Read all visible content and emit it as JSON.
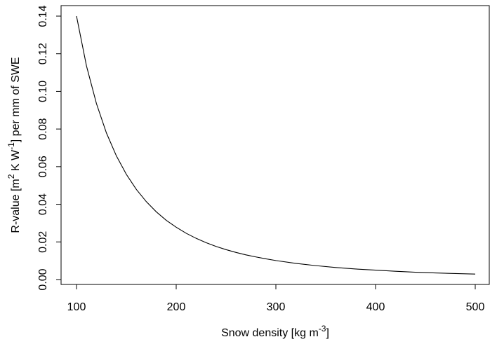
{
  "chart_data": {
    "type": "line",
    "title": "",
    "xlabel": {
      "main": "Snow density [kg m",
      "sup": "-3",
      "tail": "]"
    },
    "ylabel": {
      "p1": "R-value [m",
      "s1": "2",
      "p2": " K W",
      "s2": "-1",
      "p3": "] per mm of SWE"
    },
    "xlim": [
      100,
      500
    ],
    "ylim": [
      0,
      0.14
    ],
    "xticks": [
      100,
      200,
      300,
      400,
      500
    ],
    "xtick_labels": [
      "100",
      "200",
      "300",
      "400",
      "500"
    ],
    "yticks": [
      0.0,
      0.02,
      0.04,
      0.06,
      0.08,
      0.1,
      0.12,
      0.14
    ],
    "ytick_labels": [
      "0.00",
      "0.02",
      "0.04",
      "0.06",
      "0.08",
      "0.10",
      "0.12",
      "0.14"
    ],
    "grid": false,
    "legend": "none",
    "line_color": "#000000",
    "series": [
      {
        "x": [
          100,
          110,
          120,
          130,
          140,
          150,
          160,
          170,
          180,
          190,
          200,
          210,
          220,
          230,
          240,
          250,
          260,
          270,
          280,
          290,
          300,
          320,
          340,
          360,
          380,
          400,
          420,
          440,
          460,
          480,
          500
        ],
        "y": [
          0.14,
          0.1135,
          0.0935,
          0.0779,
          0.0657,
          0.0559,
          0.0479,
          0.0414,
          0.036,
          0.0315,
          0.0278,
          0.0246,
          0.0219,
          0.0196,
          0.0176,
          0.0159,
          0.0144,
          0.0131,
          0.012,
          0.011,
          0.0101,
          0.0086,
          0.0074,
          0.0064,
          0.0056,
          0.005,
          0.0044,
          0.0039,
          0.0035,
          0.0032,
          0.0029
        ]
      }
    ]
  }
}
